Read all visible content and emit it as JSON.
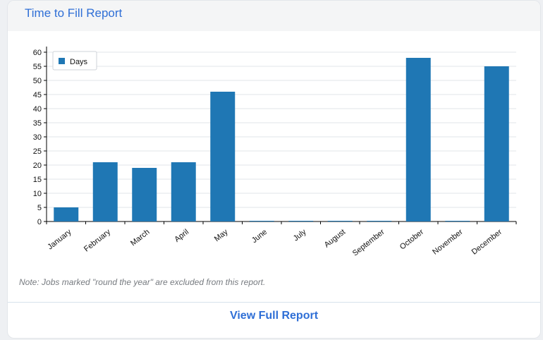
{
  "card": {
    "title": "Time to Fill Report",
    "note": "Note: Jobs marked \"round the year\" are excluded from this report.",
    "view_label": "View Full Report"
  },
  "chart_data": {
    "type": "bar",
    "categories": [
      "January",
      "February",
      "March",
      "April",
      "May",
      "June",
      "July",
      "August",
      "September",
      "October",
      "November",
      "December"
    ],
    "series": [
      {
        "name": "Days",
        "values": [
          5,
          21,
          19,
          21,
          46,
          0,
          0,
          0,
          0,
          58,
          0,
          55
        ]
      }
    ],
    "title": "",
    "xlabel": "",
    "ylabel": "",
    "ylim": [
      0,
      60
    ],
    "yticks": [
      0,
      5,
      10,
      15,
      20,
      25,
      30,
      35,
      40,
      45,
      50,
      55,
      60
    ],
    "grid": true,
    "legend": "top-left",
    "bar_color": "#1f77b4"
  }
}
